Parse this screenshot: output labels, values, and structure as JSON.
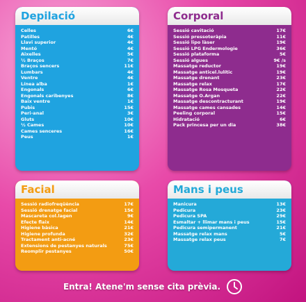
{
  "sections": {
    "depilacio": {
      "title": "Depilació",
      "items": [
        [
          "Celles",
          "6€"
        ],
        [
          "Patilles",
          "4€"
        ],
        [
          "Llavi superior",
          "4€"
        ],
        [
          "Mentó",
          "4€"
        ],
        [
          "Aixelles",
          "5€"
        ],
        [
          "½ Braços",
          "7€"
        ],
        [
          "Braços sencers",
          "11€"
        ],
        [
          "Lumbars",
          "4€"
        ],
        [
          "Ventre",
          "4€"
        ],
        [
          "Línea alba",
          "1€"
        ],
        [
          "Engonals",
          "6€"
        ],
        [
          "Engonals caribenyes",
          "8€"
        ],
        [
          "Baix ventre",
          "1€"
        ],
        [
          "Pubis",
          "15€"
        ],
        [
          "Peri-anal",
          "3€"
        ],
        [
          "Gluts",
          "10€"
        ],
        [
          "½ Cames",
          "10€"
        ],
        [
          "Cames senceres",
          "16€"
        ],
        [
          "Peus",
          "1€"
        ]
      ]
    },
    "corporal": {
      "title": "Corporal",
      "items": [
        [
          "Sessió cavitació",
          "17€"
        ],
        [
          "Sessió pressoteràpia",
          "11€"
        ],
        [
          "Sessió lipo làser",
          "19€"
        ],
        [
          "Sessió LPG Endermologie",
          "36€"
        ],
        [
          "Sessió plataforma",
          "5€"
        ],
        [
          "Sessió algues",
          "9€ /s"
        ],
        [
          "Massatge reductor",
          "19€"
        ],
        [
          "Massatge anticel.lulític",
          "19€"
        ],
        [
          "Massatge drenant",
          "23€"
        ],
        [
          "Massatge relax",
          "17€"
        ],
        [
          "Massatge Rosa Mosqueta",
          "22€"
        ],
        [
          "Massatge O.Argan",
          "22€"
        ],
        [
          "Massatge descontracturant",
          "19€"
        ],
        [
          "Massatge cames cansades",
          "14€"
        ],
        [
          "Peeling corporal",
          "15€"
        ],
        [
          "Hidratació",
          "6€"
        ],
        [
          "Pack princesa per un dia",
          "38€"
        ]
      ]
    },
    "facial": {
      "title": "Facial",
      "items": [
        [
          "Sessió radiofreqüència",
          "17€"
        ],
        [
          "Sessió drenatge facial",
          "15€"
        ],
        [
          "Mascareta col.lagen",
          "9€"
        ],
        [
          "Efecte flaix",
          "14€"
        ],
        [
          "Higiene bàsica",
          "21€"
        ],
        [
          "Higiene profunda",
          "32€"
        ],
        [
          "Tractament anti-acné",
          "23€"
        ],
        [
          "Extensions de pestanyes naturals",
          "75€"
        ],
        [
          "Reomplir pestanyes",
          "50€"
        ]
      ]
    },
    "mans": {
      "title": "Mans i peus",
      "items": [
        [
          "Manicura",
          "13€"
        ],
        [
          "Pedicura",
          "23€"
        ],
        [
          "Pedicura SPA",
          "29€"
        ],
        [
          "Esmaltar + llimar mans i peus",
          "15€"
        ],
        [
          "Pedicura semipermanent",
          "21€"
        ],
        [
          "Massatge relax mans",
          "5€"
        ],
        [
          "Massatge relax peus",
          "7€"
        ]
      ]
    }
  },
  "footer": {
    "text": "Entra! Atene'm sense cita prèvia.",
    "icon": "clock-icon"
  },
  "colors": {
    "depilacio": "#1fa3e0",
    "corporal": "#8e2c8e",
    "facial": "#f39c12",
    "mans": "#24a9d8"
  }
}
